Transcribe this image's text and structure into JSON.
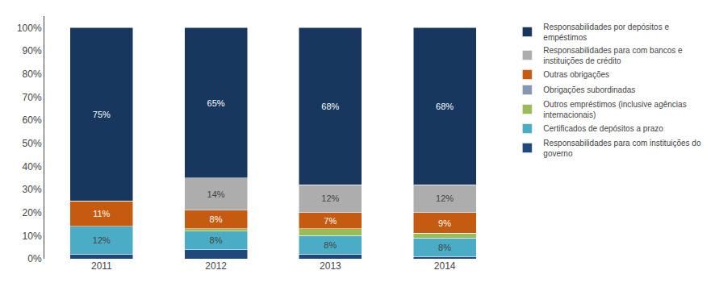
{
  "chart_data": {
    "type": "bar",
    "stacked": true,
    "categories": [
      "2011",
      "2012",
      "2013",
      "2014"
    ],
    "series": [
      {
        "name": "Responsabilidades por depósitos e\nempéstimos",
        "color": "#17375E",
        "values": [
          75,
          65,
          68,
          68
        ],
        "value_labels": [
          "75%",
          "65%",
          "68%",
          "68%"
        ]
      },
      {
        "name": "Responsabilidades para com bancos e\ninstituições de crédito",
        "color": "#ADADAD",
        "values": [
          0,
          14,
          12,
          12
        ],
        "value_labels": [
          null,
          "14%",
          "12%",
          "12%"
        ]
      },
      {
        "name": "Outras obrigações",
        "color": "#C55A11",
        "values": [
          11,
          8,
          7,
          9
        ],
        "value_labels": [
          "11%",
          "8%",
          "7%",
          "9%"
        ]
      },
      {
        "name": "Obrigações subordinadas",
        "color": "#8496B0",
        "values": [
          0,
          0,
          0,
          0
        ]
      },
      {
        "name": "Outros empréstimos (inclusive agências\ninternacionais)",
        "color": "#9BBB59",
        "values": [
          0,
          1,
          3,
          2
        ]
      },
      {
        "name": "Certificados de depósitos a prazo",
        "color": "#4BACC6",
        "values": [
          12,
          8,
          8,
          8
        ],
        "value_labels": [
          "12%",
          "8%",
          "8%",
          "8%"
        ]
      },
      {
        "name": "Responsabilidades para com instituições do\ngoverno",
        "color": "#1F497D",
        "values": [
          2,
          4,
          2,
          1
        ]
      }
    ],
    "ylim": [
      0,
      105
    ],
    "yticks": [
      {
        "value": 0,
        "label": "0%"
      },
      {
        "value": 10,
        "label": "10%"
      },
      {
        "value": 20,
        "label": "20%"
      },
      {
        "value": 30,
        "label": "30%"
      },
      {
        "value": 40,
        "label": "40%"
      },
      {
        "value": 50,
        "label": "50%"
      },
      {
        "value": 60,
        "label": "60%"
      },
      {
        "value": 70,
        "label": "70%"
      },
      {
        "value": 80,
        "label": "80%"
      },
      {
        "value": 90,
        "label": "90%"
      },
      {
        "value": 100,
        "label": "100%"
      }
    ],
    "grid": false,
    "legend": "right"
  }
}
